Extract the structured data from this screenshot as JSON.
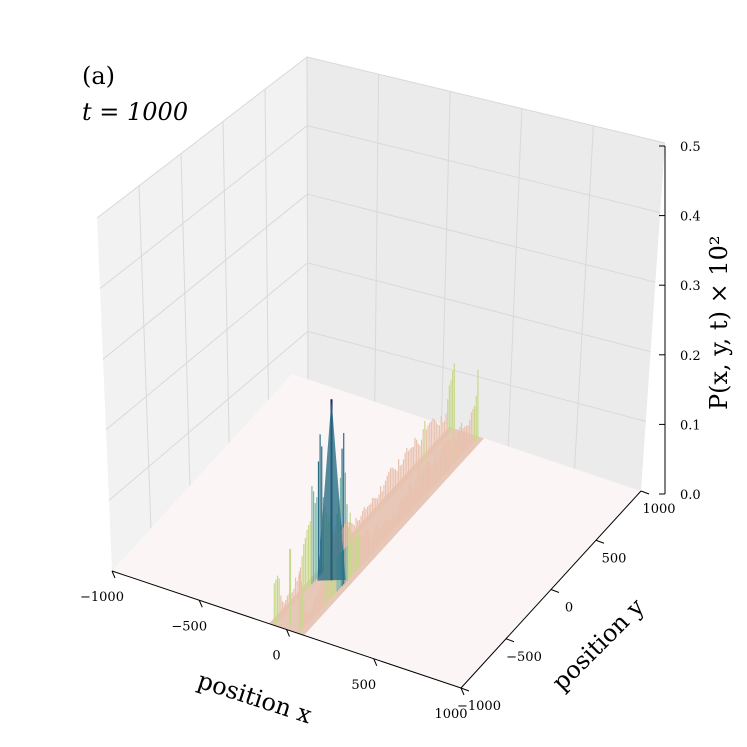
{
  "chart_data": {
    "type": "surface3d",
    "panel_label": "(a)",
    "time_label": "t = 1000",
    "xlabel": "position x",
    "ylabel": "position y",
    "zlabel": "P(x, y, t) × 10²",
    "x_ticks": [
      "−1000",
      "−500",
      "0",
      "500",
      "1000"
    ],
    "y_ticks": [
      "−1000",
      "−500",
      "0",
      "500",
      "1000"
    ],
    "z_ticks": [
      "0.0",
      "0.1",
      "0.2",
      "0.3",
      "0.4",
      "0.5"
    ],
    "xlim": [
      -1000,
      1000
    ],
    "ylim": [
      -1000,
      1000
    ],
    "zlim": [
      0,
      0.5
    ],
    "grid": true,
    "support": {
      "x_range": [
        -100,
        100
      ],
      "y_range": [
        -1000,
        1000
      ]
    },
    "peak": {
      "x": 0,
      "y": -500,
      "z": 0.26
    },
    "profile_y": [
      -1000,
      -900,
      -800,
      -700,
      -600,
      -550,
      -500,
      -450,
      -400,
      -300,
      -200,
      -100,
      0,
      100,
      200,
      300,
      400,
      500,
      600,
      700,
      800,
      900,
      1000
    ],
    "profile_z": [
      0.11,
      0.02,
      0.03,
      0.06,
      0.13,
      0.16,
      0.26,
      0.13,
      0.08,
      0.05,
      0.04,
      0.03,
      0.03,
      0.03,
      0.04,
      0.05,
      0.05,
      0.05,
      0.05,
      0.06,
      0.05,
      0.04,
      0.12
    ],
    "colormap": [
      "#0b1a4f",
      "#2b6e86",
      "#7bb8a6",
      "#c8d88a",
      "#e9c1ae",
      "#fbf4f4"
    ]
  }
}
